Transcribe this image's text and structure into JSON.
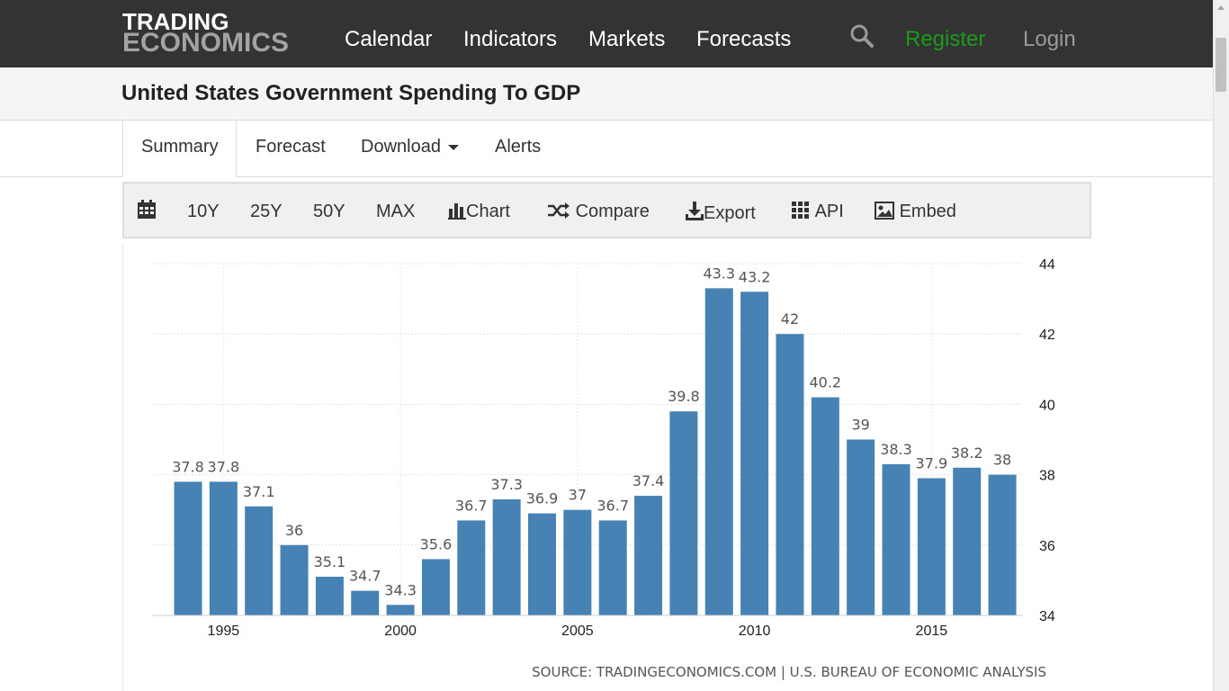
{
  "header": {
    "logo_line1": "TRADING",
    "logo_line2": "ECONOMICS",
    "nav": {
      "calendar": "Calendar",
      "indicators": "Indicators",
      "markets": "Markets",
      "forecasts": "Forecasts",
      "register": "Register",
      "login": "Login"
    },
    "icons": {
      "search": "search-icon"
    }
  },
  "page": {
    "title": "United States Government Spending To GDP"
  },
  "tabs": {
    "summary": "Summary",
    "forecast": "Forecast",
    "download": "Download",
    "alerts": "Alerts"
  },
  "toolbar": {
    "range_10y": "10Y",
    "range_25y": "25Y",
    "range_50y": "50Y",
    "range_max": "MAX",
    "chart": "Chart",
    "compare": "Compare",
    "export": "Export",
    "api": "API",
    "embed": "Embed",
    "icons": [
      "calendar-icon",
      "bar-chart-icon",
      "shuffle-icon",
      "download-icon",
      "grid-icon",
      "image-icon"
    ]
  },
  "colors": {
    "topbar": "#333333",
    "bar": "#4682b4",
    "register": "#1a9c1a"
  },
  "chart_data": {
    "type": "bar",
    "title": "",
    "xlabel": "",
    "ylabel": "",
    "categories": [
      "1994",
      "1995",
      "1996",
      "1997",
      "1998",
      "1999",
      "2000",
      "2001",
      "2002",
      "2003",
      "2004",
      "2005",
      "2006",
      "2007",
      "2008",
      "2009",
      "2010",
      "2011",
      "2012",
      "2013",
      "2014",
      "2015",
      "2016",
      "2017"
    ],
    "values": [
      37.8,
      37.8,
      37.1,
      36,
      35.1,
      34.7,
      34.3,
      35.6,
      36.7,
      37.3,
      36.9,
      37,
      36.7,
      37.4,
      39.8,
      43.3,
      43.2,
      42,
      40.2,
      39,
      38.3,
      37.9,
      38.2,
      38
    ],
    "data_labels": [
      "37.8",
      "37.8",
      "37.1",
      "36",
      "35.1",
      "34.7",
      "34.3",
      "35.6",
      "36.7",
      "37.3",
      "36.9",
      "37",
      "36.7",
      "37.4",
      "39.8",
      "43.3",
      "43.2",
      "42",
      "40.2",
      "39",
      "38.3",
      "37.9",
      "38.2",
      "38"
    ],
    "ylim": [
      34,
      44
    ],
    "y_ticks": [
      "34",
      "36",
      "38",
      "40",
      "42",
      "44"
    ],
    "x_ticks": [
      "1995",
      "2000",
      "2005",
      "2010",
      "2015"
    ],
    "y_axis_side": "right",
    "grid": true,
    "source": "SOURCE: TRADINGECONOMICS.COM | U.S. BUREAU OF ECONOMIC ANALYSIS"
  }
}
